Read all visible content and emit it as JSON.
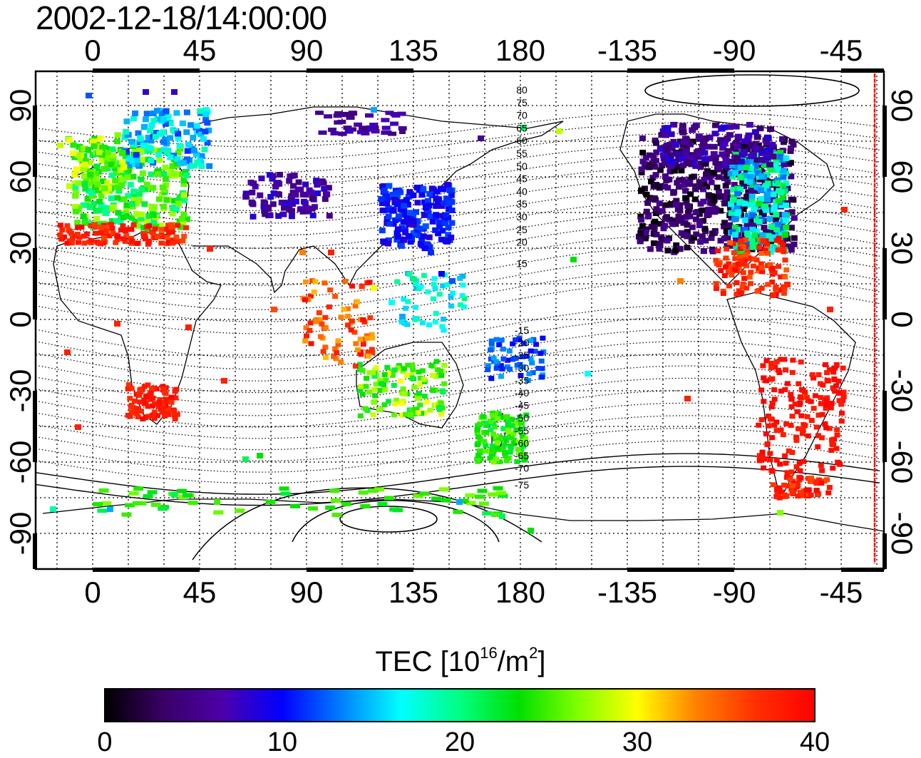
{
  "title": "2002-12-18/14:00:00",
  "map": {
    "top_axis_labels": [
      "0",
      "45",
      "90",
      "135",
      "180",
      "-135",
      "-90",
      "-45"
    ],
    "bottom_axis_labels": [
      "0",
      "45",
      "90",
      "135",
      "180",
      "-135",
      "-90",
      "-45"
    ],
    "left_axis_labels": [
      "90",
      "60",
      "30",
      "0",
      "-30",
      "-60",
      "-90"
    ],
    "right_axis_labels": [
      "90",
      "60",
      "30",
      "0",
      "-30",
      "-60",
      "-90"
    ],
    "contour_labels_north": [
      "80",
      "75",
      "70",
      "65",
      "60",
      "55",
      "50",
      "45",
      "40",
      "35",
      "30",
      "25",
      "20",
      "15"
    ],
    "contour_labels_south": [
      "-15",
      "-20",
      "-25",
      "-30",
      "-35",
      "-40",
      "-45",
      "-50",
      "-55",
      "-60",
      "-65",
      "-70",
      "-75"
    ],
    "terminator_color": "#ff0000"
  },
  "colorbar": {
    "label_main": "TEC  [10",
    "label_exp1": "16",
    "label_mid": "/m",
    "label_exp2": "2",
    "label_end": "]",
    "ticks": [
      "0",
      "10",
      "20",
      "30",
      "40"
    ],
    "range": [
      0,
      40
    ],
    "colors": [
      "#000000",
      "#3a0066",
      "#4b00aa",
      "#0000ff",
      "#0080ff",
      "#00ffff",
      "#00ff80",
      "#00e000",
      "#80ff00",
      "#ffff00",
      "#ff8000",
      "#ff3000",
      "#ff0000"
    ]
  }
}
